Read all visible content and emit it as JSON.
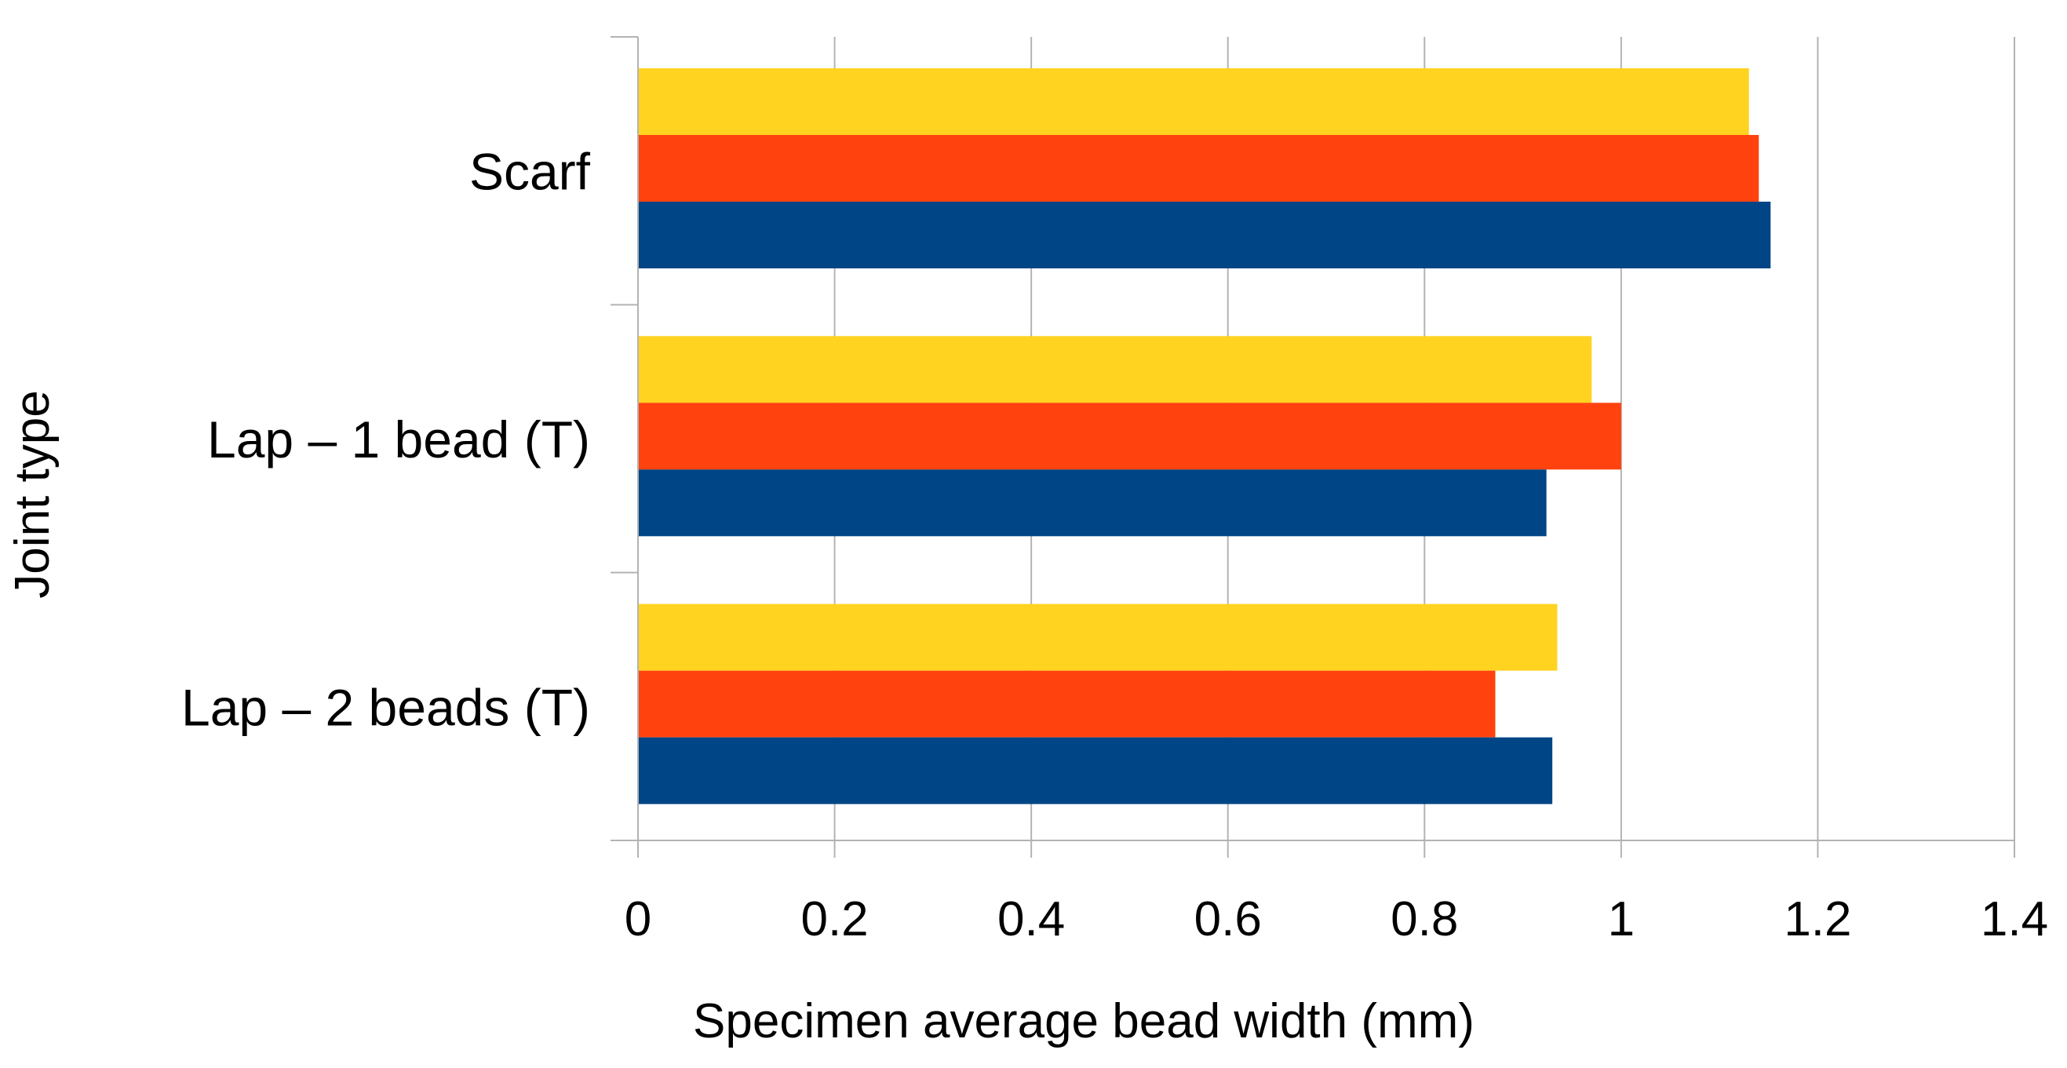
{
  "chart_data": {
    "type": "bar",
    "orientation": "horizontal",
    "xlabel": "Specimen average bead width (mm)",
    "ylabel": "Joint type",
    "xlim": [
      0,
      1.4
    ],
    "xticks": [
      0,
      0.2,
      0.4,
      0.6,
      0.8,
      1,
      1.2,
      1.4
    ],
    "xtick_labels": [
      "0",
      "0.2",
      "0.4",
      "0.6",
      "0.8",
      "1",
      "1.2",
      "1.4"
    ],
    "grid": "vertical",
    "legend": "none",
    "categories": [
      "Scarf",
      "Lap – 1 bead (T)",
      "Lap – 2 beads (T)"
    ],
    "series": [
      {
        "color": "#FFD320",
        "values": [
          1.13,
          0.97,
          0.935
        ]
      },
      {
        "color": "#FF420E",
        "values": [
          1.14,
          1.0,
          0.872
        ]
      },
      {
        "color": "#004586",
        "values": [
          1.152,
          0.924,
          0.93
        ]
      }
    ]
  }
}
